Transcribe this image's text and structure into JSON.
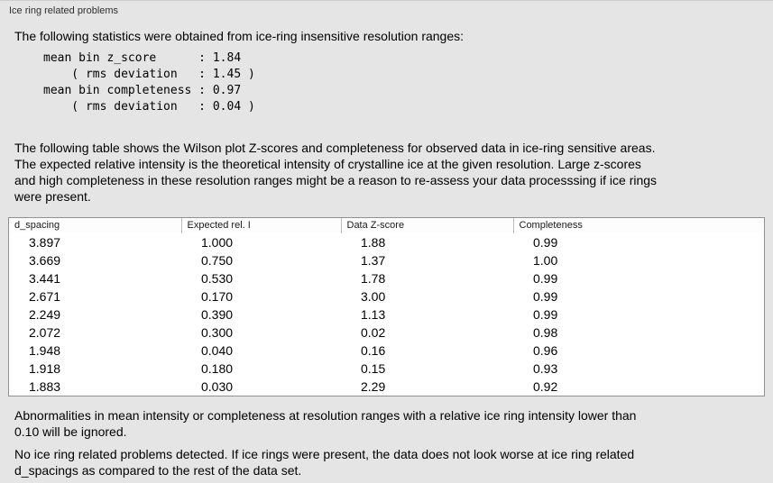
{
  "panel": {
    "title": "Ice ring related problems"
  },
  "sections": {
    "intro": "The following statistics were obtained from ice-ring insensitive resolution ranges:",
    "stats_block": "mean bin z_score      : 1.84\n    ( rms deviation   : 1.45 )\nmean bin completeness : 0.97\n    ( rms deviation   : 0.04 )",
    "table_description": "The following table shows the Wilson plot Z-scores and completeness for observed data in ice-ring sensitive areas.\nThe expected relative intensity is the theoretical intensity of crystalline ice at the given resolution. Large z-scores\nand high completeness in these resolution ranges might be a reason to re-assess your data processsing if ice rings\nwere present.",
    "ignore_note": "Abnormalities in mean intensity or completeness at resolution ranges with a relative ice ring intensity lower than\n0.10 will be ignored.",
    "conclusion": "No ice ring related problems detected. If ice rings were present, the data does not look worse at ice ring related\nd_spacings as compared to the rest of the data set."
  },
  "table": {
    "columns": [
      "d_spacing",
      "Expected rel. I",
      "Data Z-score",
      "Completeness"
    ],
    "rows": [
      [
        "3.897",
        "1.000",
        "1.88",
        "0.99"
      ],
      [
        "3.669",
        "0.750",
        "1.37",
        "1.00"
      ],
      [
        "3.441",
        "0.530",
        "1.78",
        "0.99"
      ],
      [
        "2.671",
        "0.170",
        "3.00",
        "0.99"
      ],
      [
        "2.249",
        "0.390",
        "1.13",
        "0.99"
      ],
      [
        "2.072",
        "0.300",
        "0.02",
        "0.98"
      ],
      [
        "1.948",
        "0.040",
        "0.16",
        "0.96"
      ],
      [
        "1.918",
        "0.180",
        "0.15",
        "0.93"
      ],
      [
        "1.883",
        "0.030",
        "2.29",
        "0.92"
      ]
    ]
  }
}
